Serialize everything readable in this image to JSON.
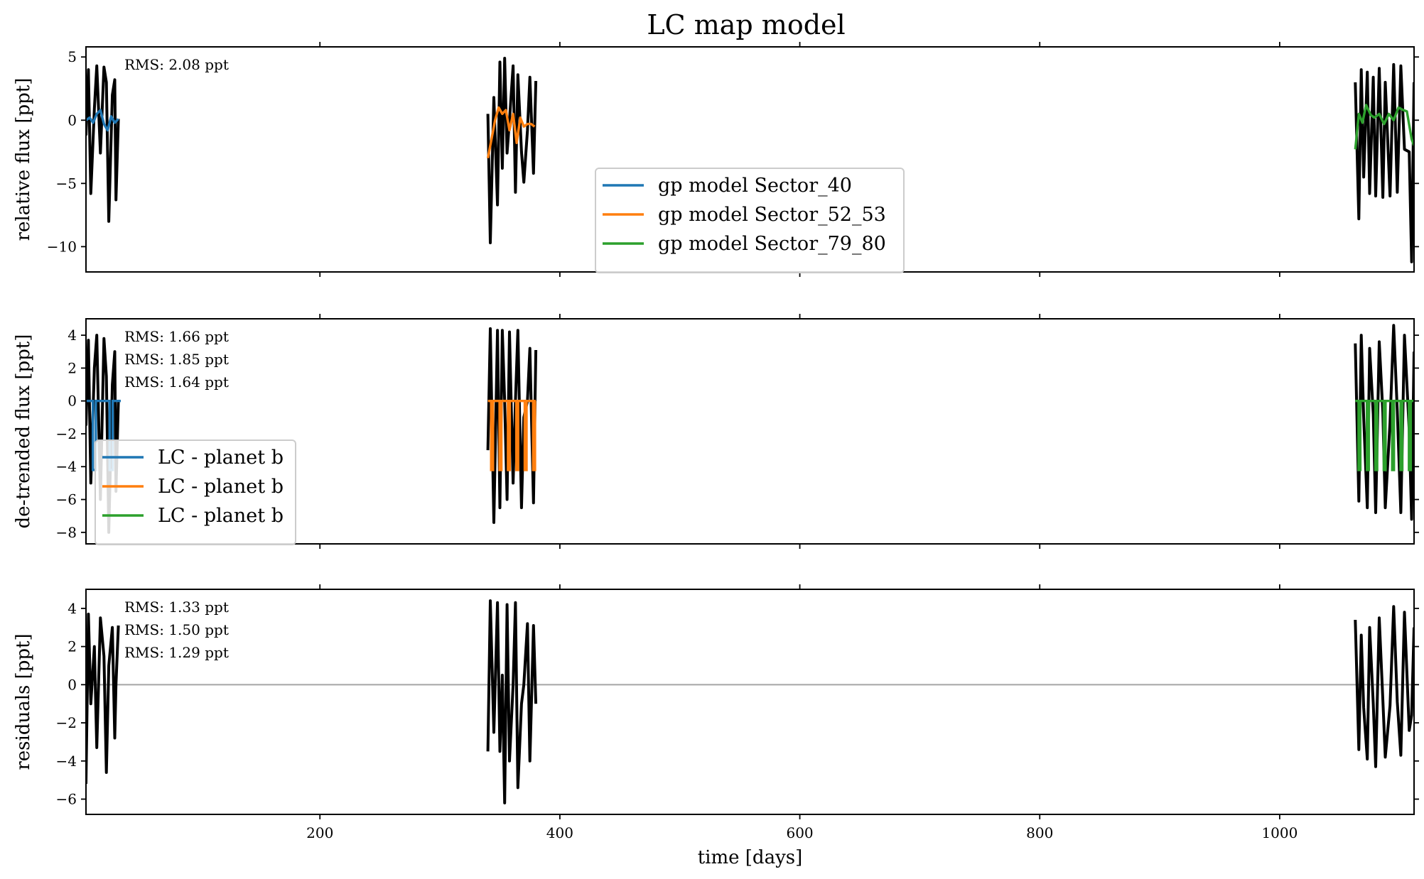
{
  "figure_title": "LC map model",
  "colors": {
    "data": "#000000",
    "sector_40": "#1f77b4",
    "sector_52_53": "#ff7f0e",
    "sector_79_80": "#2ca02c",
    "zero_line": "#aaaaaa"
  },
  "chart_data": [
    {
      "type": "line",
      "title": "LC map model",
      "ylabel": "relative flux [ppt]",
      "xlabel": "",
      "xlim": [
        5,
        1112
      ],
      "ylim": [
        -12,
        5.8
      ],
      "xticks": [
        200,
        400,
        600,
        800,
        1000
      ],
      "yticks": [
        5,
        0,
        -5,
        -10
      ],
      "ytick_labels": [
        "5",
        "0",
        "−5",
        "−10"
      ],
      "annotations": [
        "RMS: 2.08 ppt"
      ],
      "legend": {
        "position": "center-bottom",
        "entries": [
          "gp model Sector_40",
          "gp model Sector_52_53",
          "gp model Sector_79_80"
        ]
      },
      "series": [
        {
          "kind": "data",
          "x": [
            5,
            7,
            9,
            12,
            14,
            17,
            20,
            22,
            24,
            27,
            29,
            30,
            32
          ],
          "y": [
            -1.2,
            4.0,
            -5.8,
            0.9,
            4.3,
            -2.6,
            4.2,
            3.0,
            -8.0,
            2.0,
            3.2,
            -6.3,
            0.1
          ]
        },
        {
          "kind": "data",
          "x": [
            340,
            342,
            345,
            348,
            350,
            352,
            354,
            356,
            358,
            361,
            363,
            365,
            368,
            370,
            373,
            375,
            378,
            380
          ],
          "y": [
            0.5,
            -9.7,
            1.8,
            -6.7,
            4.6,
            -3.8,
            4.9,
            -2.6,
            0.0,
            4.3,
            -5.7,
            3.6,
            -2.5,
            -4.9,
            -0.8,
            3.4,
            -4.2,
            3.1
          ]
        },
        {
          "kind": "data",
          "x": [
            1063,
            1066,
            1068,
            1070,
            1073,
            1075,
            1078,
            1080,
            1083,
            1086,
            1088,
            1092,
            1095,
            1098,
            1101,
            1104,
            1108,
            1110,
            1112
          ],
          "y": [
            3.0,
            -7.8,
            4.0,
            -4.5,
            3.8,
            -5.8,
            3.4,
            -6.0,
            4.1,
            -6.1,
            3.0,
            -6.0,
            4.4,
            -5.7,
            4.3,
            -2.3,
            -2.5,
            -11.2,
            3.0
          ]
        },
        {
          "name": "gp model Sector_40",
          "kind": "model",
          "x": [
            5,
            8,
            11,
            14,
            17,
            20,
            23,
            26,
            29,
            32
          ],
          "y": [
            0.0,
            0.2,
            -0.2,
            0.5,
            0.8,
            -0.3,
            -0.8,
            0.3,
            -0.2,
            0.1
          ]
        },
        {
          "name": "gp model Sector_52_53",
          "kind": "model",
          "x": [
            340,
            343,
            346,
            349,
            352,
            355,
            358,
            361,
            364,
            367,
            370,
            373,
            376,
            379
          ],
          "y": [
            -3.0,
            -1.5,
            0.0,
            1.0,
            0.5,
            0.8,
            -0.8,
            0.5,
            -1.8,
            0.2,
            -0.5,
            -0.3,
            -0.3,
            -0.5
          ]
        },
        {
          "name": "gp model Sector_79_80",
          "kind": "model",
          "x": [
            1063,
            1066,
            1069,
            1072,
            1076,
            1079,
            1083,
            1087,
            1091,
            1095,
            1099,
            1103,
            1106,
            1110,
            1112
          ],
          "y": [
            -2.3,
            0.5,
            -0.2,
            1.2,
            0.4,
            0.2,
            0.5,
            -0.3,
            0.5,
            0.0,
            1.0,
            0.8,
            0.7,
            -1.5,
            -2.0
          ]
        }
      ]
    },
    {
      "type": "line",
      "ylabel": "de-trended flux [ppt]",
      "xlabel": "",
      "xlim": [
        5,
        1112
      ],
      "ylim": [
        -8.7,
        5.0
      ],
      "xticks": [
        200,
        400,
        600,
        800,
        1000
      ],
      "yticks": [
        4,
        2,
        0,
        -2,
        -4,
        -6,
        -8
      ],
      "ytick_labels": [
        "4",
        "2",
        "0",
        "−2",
        "−4",
        "−6",
        "−8"
      ],
      "annotations": [
        "RMS: 1.66 ppt",
        "RMS: 1.85 ppt",
        "RMS: 1.64 ppt"
      ],
      "legend": {
        "position": "lower-left",
        "entries": [
          "LC - planet b",
          "LC - planet b",
          "LC - planet b"
        ]
      },
      "series": [
        {
          "kind": "data",
          "x": [
            5,
            7,
            9,
            12,
            14,
            17,
            20,
            22,
            24,
            27,
            29,
            30,
            32
          ],
          "y": [
            -1.5,
            3.7,
            -5.0,
            2.0,
            4.0,
            -6.0,
            3.8,
            1.5,
            -8.0,
            1.0,
            3.0,
            -5.5,
            0.0
          ]
        },
        {
          "kind": "data",
          "x": [
            340,
            342,
            345,
            348,
            350,
            352,
            354,
            356,
            358,
            361,
            363,
            365,
            368,
            370,
            373,
            375,
            378,
            380
          ],
          "y": [
            -3.0,
            4.4,
            -7.4,
            4.3,
            -6.5,
            4.3,
            0.0,
            -6.0,
            4.2,
            -5.0,
            0.0,
            4.3,
            -6.5,
            -1.0,
            0.0,
            3.2,
            -6.2,
            3.1
          ]
        },
        {
          "kind": "data",
          "x": [
            1063,
            1066,
            1068,
            1070,
            1073,
            1075,
            1078,
            1080,
            1083,
            1086,
            1088,
            1092,
            1095,
            1098,
            1101,
            1104,
            1108,
            1110,
            1112
          ],
          "y": [
            3.5,
            -6.1,
            4.0,
            -1.0,
            -6.5,
            3.2,
            -0.8,
            -6.8,
            3.6,
            -0.7,
            -6.5,
            -1.3,
            4.6,
            -0.6,
            -6.8,
            4.0,
            -1.8,
            -7.2,
            3.0
          ]
        },
        {
          "name": "LC - planet b",
          "kind": "transit",
          "period": 14.0,
          "duration": 2.5,
          "depth": -4.2,
          "xrange": [
            5,
            34
          ]
        },
        {
          "name": "LC - planet b",
          "kind": "transit",
          "period": 7.0,
          "duration": 1.5,
          "depth": -4.2,
          "xrange": [
            340,
            380
          ]
        },
        {
          "name": "LC - planet b",
          "kind": "transit",
          "period": 7.0,
          "duration": 1.5,
          "depth": -4.2,
          "xrange": [
            1063,
            1112
          ]
        }
      ]
    },
    {
      "type": "line",
      "ylabel": "residuals [ppt]",
      "xlabel": "time [days]",
      "xlim": [
        5,
        1112
      ],
      "ylim": [
        -6.8,
        5.0
      ],
      "xticks": [
        200,
        400,
        600,
        800,
        1000
      ],
      "xtick_labels": [
        "200",
        "400",
        "600",
        "800",
        "1000"
      ],
      "yticks": [
        4,
        2,
        0,
        -2,
        -4,
        -6
      ],
      "ytick_labels": [
        "4",
        "2",
        "0",
        "−2",
        "−4",
        "−6"
      ],
      "annotations": [
        "RMS: 1.33 ppt",
        "RMS: 1.50 ppt",
        "RMS: 1.29 ppt"
      ],
      "reference_line": 0,
      "series": [
        {
          "kind": "data",
          "x": [
            5,
            7,
            9,
            12,
            14,
            17,
            20,
            22,
            24,
            27,
            29,
            30,
            32
          ],
          "y": [
            -5.2,
            3.7,
            -1.0,
            2.0,
            -3.3,
            3.5,
            1.5,
            -4.6,
            1.0,
            3.0,
            -2.8,
            0.0,
            3.1
          ]
        },
        {
          "kind": "data",
          "x": [
            340,
            342,
            345,
            348,
            350,
            352,
            354,
            356,
            358,
            361,
            363,
            365,
            368,
            370,
            373,
            375,
            378,
            380
          ],
          "y": [
            -3.5,
            4.4,
            -2.5,
            4.3,
            -3.5,
            0.5,
            -6.2,
            4.2,
            -4.0,
            0.0,
            4.3,
            -5.4,
            -1.0,
            0.0,
            3.2,
            -4.0,
            3.1,
            -1.0
          ]
        },
        {
          "kind": "data",
          "x": [
            1063,
            1066,
            1068,
            1070,
            1073,
            1075,
            1078,
            1080,
            1083,
            1086,
            1088,
            1092,
            1095,
            1098,
            1101,
            1104,
            1108,
            1110,
            1112
          ],
          "y": [
            3.4,
            -3.4,
            2.6,
            -1.2,
            -3.9,
            3.0,
            -1.0,
            -4.3,
            3.5,
            -0.8,
            -3.8,
            -1.1,
            4.1,
            -0.9,
            -3.7,
            3.8,
            -2.4,
            -1.6,
            3.0
          ]
        }
      ]
    }
  ]
}
